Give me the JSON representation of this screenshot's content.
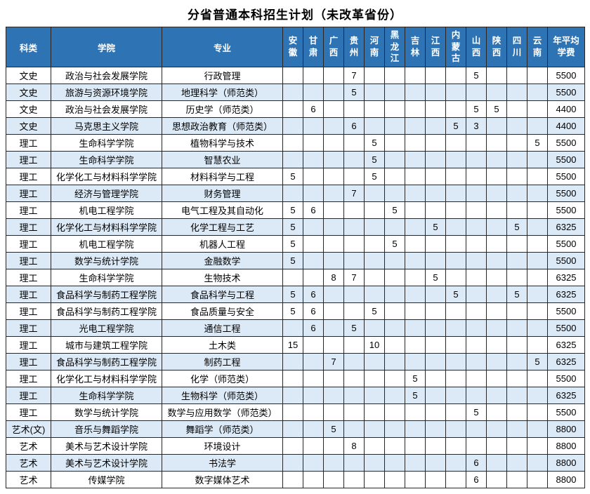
{
  "title": "分省普通本科招生计划（未改革省份）",
  "table": {
    "columns": {
      "category": "科类",
      "college": "学院",
      "major": "专业",
      "provinces": [
        "安徽",
        "甘肃",
        "广西",
        "贵州",
        "河南",
        "黑龙江",
        "吉林",
        "江西",
        "内蒙古",
        "山西",
        "陕西",
        "四川",
        "云南"
      ],
      "fee": "年平均学费"
    },
    "rows": [
      {
        "category": "文史",
        "college": "政治与社会发展学院",
        "major": "行政管理",
        "values": [
          "",
          "",
          "",
          "7",
          "",
          "",
          "",
          "",
          "",
          "5",
          "",
          "",
          ""
        ],
        "fee": "5500"
      },
      {
        "category": "文史",
        "college": "旅游与资源环境学院",
        "major": "地理科学（师范类）",
        "values": [
          "",
          "",
          "",
          "5",
          "",
          "",
          "",
          "",
          "",
          "",
          "",
          "",
          ""
        ],
        "fee": "5500"
      },
      {
        "category": "文史",
        "college": "政治与社会发展学院",
        "major": "历史学（师范类）",
        "values": [
          "",
          "6",
          "",
          "",
          "",
          "",
          "",
          "",
          "",
          "5",
          "5",
          "",
          ""
        ],
        "fee": "4400"
      },
      {
        "category": "文史",
        "college": "马克思主义学院",
        "major": "思想政治教育（师范类）",
        "values": [
          "",
          "",
          "",
          "6",
          "",
          "",
          "",
          "",
          "5",
          "3",
          "",
          "",
          ""
        ],
        "fee": "4400"
      },
      {
        "category": "理工",
        "college": "生命科学学院",
        "major": "植物科学与技术",
        "values": [
          "",
          "",
          "",
          "",
          "5",
          "",
          "",
          "",
          "",
          "",
          "",
          "",
          "5"
        ],
        "fee": "5500"
      },
      {
        "category": "理工",
        "college": "生命科学学院",
        "major": "智慧农业",
        "values": [
          "",
          "",
          "",
          "",
          "5",
          "",
          "",
          "",
          "",
          "",
          "",
          "",
          ""
        ],
        "fee": "5500"
      },
      {
        "category": "理工",
        "college": "化学化工与材料科学学院",
        "major": "材料科学与工程",
        "values": [
          "5",
          "",
          "",
          "",
          "5",
          "",
          "",
          "",
          "",
          "",
          "",
          "",
          ""
        ],
        "fee": "5500"
      },
      {
        "category": "理工",
        "college": "经济与管理学院",
        "major": "财务管理",
        "values": [
          "",
          "",
          "",
          "7",
          "",
          "",
          "",
          "",
          "",
          "",
          "",
          "",
          ""
        ],
        "fee": "5500"
      },
      {
        "category": "理工",
        "college": "机电工程学院",
        "major": "电气工程及其自动化",
        "values": [
          "5",
          "6",
          "",
          "",
          "",
          "5",
          "",
          "",
          "",
          "",
          "",
          "",
          ""
        ],
        "fee": "5500"
      },
      {
        "category": "理工",
        "college": "化学化工与材料科学学院",
        "major": "化学工程与工艺",
        "values": [
          "5",
          "",
          "",
          "",
          "",
          "",
          "",
          "5",
          "",
          "",
          "",
          "5",
          ""
        ],
        "fee": "6325"
      },
      {
        "category": "理工",
        "college": "机电工程学院",
        "major": "机器人工程",
        "values": [
          "5",
          "",
          "",
          "",
          "",
          "5",
          "",
          "",
          "",
          "",
          "",
          "",
          ""
        ],
        "fee": "5500"
      },
      {
        "category": "理工",
        "college": "数学与统计学院",
        "major": "金融数学",
        "values": [
          "5",
          "",
          "",
          "",
          "",
          "",
          "",
          "",
          "",
          "",
          "",
          "",
          ""
        ],
        "fee": "5500"
      },
      {
        "category": "理工",
        "college": "生命科学学院",
        "major": "生物技术",
        "values": [
          "",
          "",
          "8",
          "7",
          "",
          "",
          "",
          "5",
          "",
          "",
          "",
          "",
          ""
        ],
        "fee": "6325"
      },
      {
        "category": "理工",
        "college": "食品科学与制药工程学院",
        "major": "食品科学与工程",
        "values": [
          "5",
          "6",
          "",
          "",
          "",
          "",
          "",
          "",
          "5",
          "",
          "",
          "5",
          ""
        ],
        "fee": "6325"
      },
      {
        "category": "理工",
        "college": "食品科学与制药工程学院",
        "major": "食品质量与安全",
        "values": [
          "5",
          "6",
          "",
          "",
          "5",
          "",
          "",
          "",
          "",
          "",
          "",
          "",
          ""
        ],
        "fee": "5500"
      },
      {
        "category": "理工",
        "college": "光电工程学院",
        "major": "通信工程",
        "values": [
          "",
          "6",
          "",
          "5",
          "",
          "",
          "",
          "",
          "",
          "",
          "",
          "",
          ""
        ],
        "fee": "5500"
      },
      {
        "category": "理工",
        "college": "城市与建筑工程学院",
        "major": "土木类",
        "values": [
          "15",
          "",
          "",
          "",
          "10",
          "",
          "",
          "",
          "",
          "",
          "",
          "",
          ""
        ],
        "fee": "6325"
      },
      {
        "category": "理工",
        "college": "食品科学与制药工程学院",
        "major": "制药工程",
        "values": [
          "",
          "",
          "7",
          "",
          "",
          "",
          "",
          "",
          "",
          "",
          "",
          "",
          "5"
        ],
        "fee": "6325"
      },
      {
        "category": "理工",
        "college": "化学化工与材料科学学院",
        "major": "化学（师范类）",
        "values": [
          "",
          "",
          "",
          "",
          "",
          "",
          "5",
          "",
          "",
          "",
          "",
          "",
          ""
        ],
        "fee": "5500"
      },
      {
        "category": "理工",
        "college": "生命科学学院",
        "major": "生物科学（师范类）",
        "values": [
          "",
          "",
          "",
          "",
          "",
          "",
          "5",
          "",
          "",
          "",
          "",
          "",
          ""
        ],
        "fee": "6325"
      },
      {
        "category": "理工",
        "college": "数学与统计学院",
        "major": "数学与应用数学（师范类）",
        "values": [
          "",
          "",
          "",
          "",
          "",
          "",
          "",
          "",
          "",
          "5",
          "",
          "",
          ""
        ],
        "fee": "5500"
      },
      {
        "category": "艺术(文)",
        "college": "音乐与舞蹈学院",
        "major": "舞蹈学（师范类）",
        "values": [
          "",
          "",
          "5",
          "",
          "",
          "",
          "",
          "",
          "",
          "",
          "",
          "",
          ""
        ],
        "fee": "8800"
      },
      {
        "category": "艺术",
        "college": "美术与艺术设计学院",
        "major": "环境设计",
        "values": [
          "",
          "",
          "",
          "8",
          "",
          "",
          "",
          "",
          "",
          "",
          "",
          "",
          ""
        ],
        "fee": "8800"
      },
      {
        "category": "艺术",
        "college": "美术与艺术设计学院",
        "major": "书法学",
        "values": [
          "",
          "",
          "",
          "",
          "",
          "",
          "",
          "",
          "",
          "6",
          "",
          "",
          ""
        ],
        "fee": "8800"
      },
      {
        "category": "艺术",
        "college": "传媒学院",
        "major": "数字媒体艺术",
        "values": [
          "",
          "",
          "",
          "",
          "",
          "",
          "",
          "",
          "",
          "6",
          "",
          "",
          ""
        ],
        "fee": "8800"
      }
    ]
  }
}
